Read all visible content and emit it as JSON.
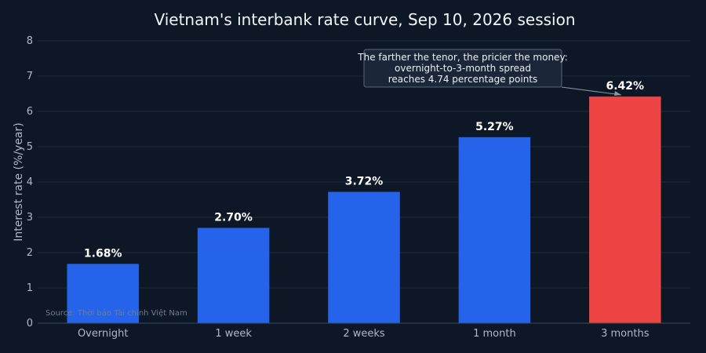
{
  "chart_data": {
    "type": "bar",
    "title": "Vietnam's interbank rate curve, Sep 10, 2026 session",
    "xlabel": "",
    "ylabel": "Interest rate (%/year)",
    "ylim": [
      0,
      8
    ],
    "yticks": [
      0,
      1,
      2,
      3,
      4,
      5,
      6,
      7,
      8
    ],
    "categories": [
      "Overnight",
      "1 week",
      "2 weeks",
      "1 month",
      "3 months"
    ],
    "values": [
      1.68,
      2.7,
      3.72,
      5.27,
      6.42
    ],
    "data_labels": [
      "1.68%",
      "2.70%",
      "3.72%",
      "5.27%",
      "6.42%"
    ],
    "colors": [
      "#2563eb",
      "#2563eb",
      "#2563eb",
      "#2563eb",
      "#ef4444"
    ],
    "grid": true,
    "annotation": {
      "lines": [
        "The farther the tenor, the pricier the money:",
        "overnight-to-3-month spread",
        "reaches 4.74 percentage points"
      ],
      "target_category": "3 months"
    },
    "source": "Source: Thời báo Tài chính Việt Nam"
  }
}
